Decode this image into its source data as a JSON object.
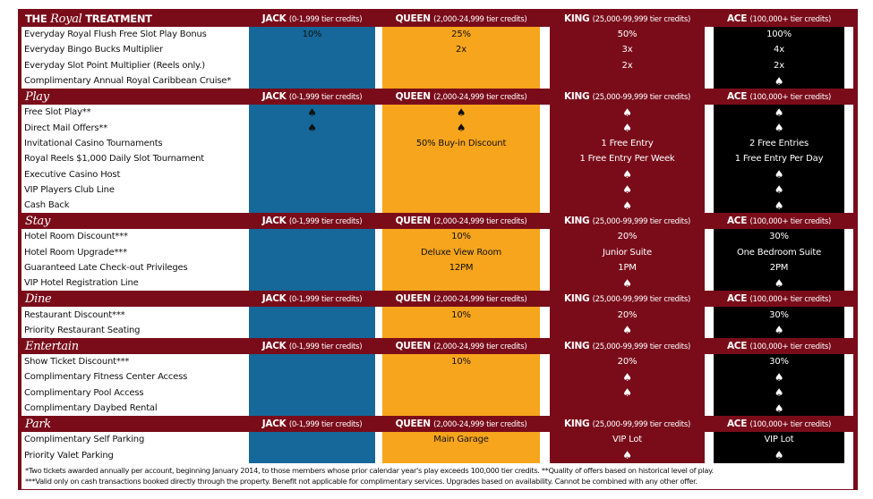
{
  "colors": {
    "frame": "#7a0c1a",
    "jack": "#156899",
    "queen": "#f7a51c",
    "king": "#7a0c1a",
    "ace": "#000000"
  },
  "tiers": [
    {
      "name": "JACK",
      "range": "(0-1,999 tier credits)"
    },
    {
      "name": "QUEEN",
      "range": "(2,000-24,999 tier credits)"
    },
    {
      "name": "KING",
      "range": "(25,000-99,999 tier credits)"
    },
    {
      "name": "ACE",
      "range": "(100,000+ tier credits)"
    }
  ],
  "sections": [
    {
      "pre": "THE ",
      "script": "Royal",
      "post": " TREATMENT",
      "rows": [
        {
          "label": "Everyday Royal Flush Free Slot Play Bonus",
          "values": [
            "10%",
            "25%",
            "50%",
            "100%"
          ]
        },
        {
          "label": "Everyday Bingo Bucks Multiplier",
          "values": [
            "",
            "2x",
            "3x",
            "4x"
          ]
        },
        {
          "label": "Everyday Slot Point Multiplier (Reels only.)",
          "values": [
            "",
            "",
            "2x",
            "2x"
          ]
        },
        {
          "label": "Complimentary Annual Royal Caribbean Cruise*",
          "values": [
            "",
            "",
            "",
            "spade-icon"
          ]
        }
      ]
    },
    {
      "pre": "",
      "script": "Play",
      "post": "",
      "rows": [
        {
          "label": "Free Slot Play**",
          "values": [
            "spade-icon",
            "spade-icon",
            "spade-icon",
            "spade-icon"
          ]
        },
        {
          "label": "Direct Mail Offers**",
          "values": [
            "spade-icon",
            "spade-icon",
            "spade-icon",
            "spade-icon"
          ]
        },
        {
          "label": "Invitational Casino Tournaments",
          "values": [
            "",
            "50% Buy-in Discount",
            "1 Free Entry",
            "2 Free Entries"
          ]
        },
        {
          "label": "Royal Reels $1,000 Daily Slot Tournament",
          "values": [
            "",
            "",
            "1 Free Entry Per Week",
            "1 Free Entry Per Day"
          ]
        },
        {
          "label": "Executive Casino Host",
          "values": [
            "",
            "",
            "spade-icon",
            "spade-icon"
          ]
        },
        {
          "label": "VIP Players Club Line",
          "values": [
            "",
            "",
            "spade-icon",
            "spade-icon"
          ]
        },
        {
          "label": "Cash Back",
          "values": [
            "",
            "",
            "spade-icon",
            "spade-icon"
          ]
        }
      ]
    },
    {
      "pre": "",
      "script": "Stay",
      "post": "",
      "rows": [
        {
          "label": "Hotel Room Discount***",
          "values": [
            "",
            "10%",
            "20%",
            "30%"
          ]
        },
        {
          "label": "Hotel Room Upgrade***",
          "values": [
            "",
            "Deluxe View Room",
            "Junior Suite",
            "One Bedroom Suite"
          ]
        },
        {
          "label": "Guaranteed Late Check-out Privileges",
          "values": [
            "",
            "12PM",
            "1PM",
            "2PM"
          ]
        },
        {
          "label": "VIP Hotel Registration Line",
          "values": [
            "",
            "",
            "spade-icon",
            "spade-icon"
          ]
        }
      ]
    },
    {
      "pre": "",
      "script": "Dine",
      "post": "",
      "rows": [
        {
          "label": "Restaurant Discount***",
          "values": [
            "",
            "10%",
            "20%",
            "30%"
          ]
        },
        {
          "label": "Priority Restaurant Seating",
          "values": [
            "",
            "",
            "spade-icon",
            "spade-icon"
          ]
        }
      ]
    },
    {
      "pre": "",
      "script": "Entertain",
      "post": "",
      "rows": [
        {
          "label": "Show Ticket Discount***",
          "values": [
            "",
            "10%",
            "20%",
            "30%"
          ]
        },
        {
          "label": "Complimentary Fitness Center Access",
          "values": [
            "",
            "",
            "spade-icon",
            "spade-icon"
          ]
        },
        {
          "label": "Complimentary Pool Access",
          "values": [
            "",
            "",
            "spade-icon",
            "spade-icon"
          ]
        },
        {
          "label": "Complimentary Daybed Rental",
          "values": [
            "",
            "",
            "",
            "spade-icon"
          ]
        }
      ]
    },
    {
      "pre": "",
      "script": "Park",
      "post": "",
      "rows": [
        {
          "label": "Complimentary Self Parking",
          "values": [
            "",
            "Main Garage",
            "VIP Lot",
            "VIP Lot"
          ]
        },
        {
          "label": "Priority Valet Parking",
          "values": [
            "",
            "",
            "spade-icon",
            "spade-icon"
          ]
        }
      ]
    }
  ],
  "footnotes": [
    "*Two tickets awarded annually per account, beginning January 2014, to those members whose prior calendar year's play exceeds 100,000 tier credits. **Quality of offers based on historical level of play.",
    "***Valid only on cash transactions booked directly through the property. Benefit not applicable for complimentary services. Upgrades based on availability. Cannot be combined with any other offer."
  ]
}
